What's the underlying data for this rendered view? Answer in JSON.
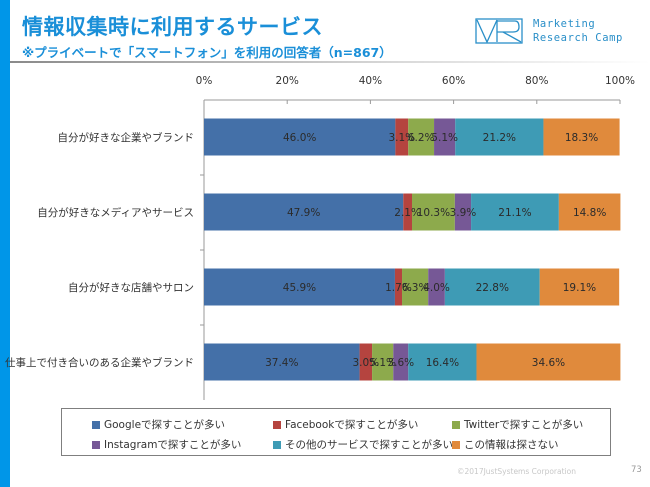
{
  "header": {
    "title": "情報収集時に利用するサービス",
    "subtitle": "※プライベートで「スマートフォン」を利用の回答者（n=867）",
    "logo_line1": "Marketing",
    "logo_line2": "Research Camp"
  },
  "colors": {
    "accent": "#0096e8",
    "title": "#1a8fd8",
    "google": "#4470a8",
    "facebook": "#b5443f",
    "twitter": "#8daa4c",
    "instagram": "#765896",
    "other": "#3e9bb5",
    "none": "#e08a3c"
  },
  "chart_data": {
    "type": "bar",
    "orientation": "horizontal",
    "stacked": true,
    "title": "情報収集時に利用するサービス",
    "subtitle": "※プライベートで「スマートフォン」を利用の回答者（n=867）",
    "xlabel": "",
    "ylabel": "",
    "xlim": [
      0,
      100
    ],
    "x_ticks": [
      "0%",
      "20%",
      "40%",
      "60%",
      "80%",
      "100%"
    ],
    "x_axis_position": "top",
    "grid": false,
    "legend_position": "bottom",
    "categories": [
      "自分が好きな企業やブランド",
      "自分が好きなメディアやサービス",
      "自分が好きな店舗やサロン",
      "仕事上で付き合いのある企業やブランド"
    ],
    "series": [
      {
        "name": "Googleで探すことが多い",
        "color": "#4470a8",
        "values": [
          46.0,
          47.9,
          45.9,
          37.4
        ],
        "labels": [
          "46.0%",
          "47.9%",
          "45.9%",
          "37.4%"
        ]
      },
      {
        "name": "Facebookで探すことが多い",
        "color": "#b5443f",
        "values": [
          3.1,
          2.1,
          1.7,
          3.0
        ],
        "labels": [
          "3.1%",
          "2.1%",
          "1.7%",
          "3.0%"
        ]
      },
      {
        "name": "Twitterで探すことが多い",
        "color": "#8daa4c",
        "values": [
          6.2,
          10.3,
          6.3,
          5.1
        ],
        "labels": [
          "6.2%",
          "10.3%",
          "6.3%",
          "5.1%"
        ]
      },
      {
        "name": "Instagramで探すことが多い",
        "color": "#765896",
        "values": [
          5.1,
          3.9,
          4.0,
          3.6
        ],
        "labels": [
          "5.1%",
          "3.9%",
          "4.0%",
          "3.6%"
        ]
      },
      {
        "name": "その他のサービスで探すことが多い",
        "color": "#3e9bb5",
        "values": [
          21.2,
          21.1,
          22.8,
          16.4
        ],
        "labels": [
          "21.2%",
          "21.1%",
          "22.8%",
          "16.4%"
        ]
      },
      {
        "name": "この情報は探さない",
        "color": "#e08a3c",
        "values": [
          18.3,
          14.8,
          19.1,
          34.6
        ],
        "labels": [
          "18.3%",
          "14.8%",
          "19.1%",
          "34.6%"
        ]
      }
    ]
  },
  "footer": {
    "copyright": "©2017JustSystems Corporation",
    "page_number": "73"
  }
}
